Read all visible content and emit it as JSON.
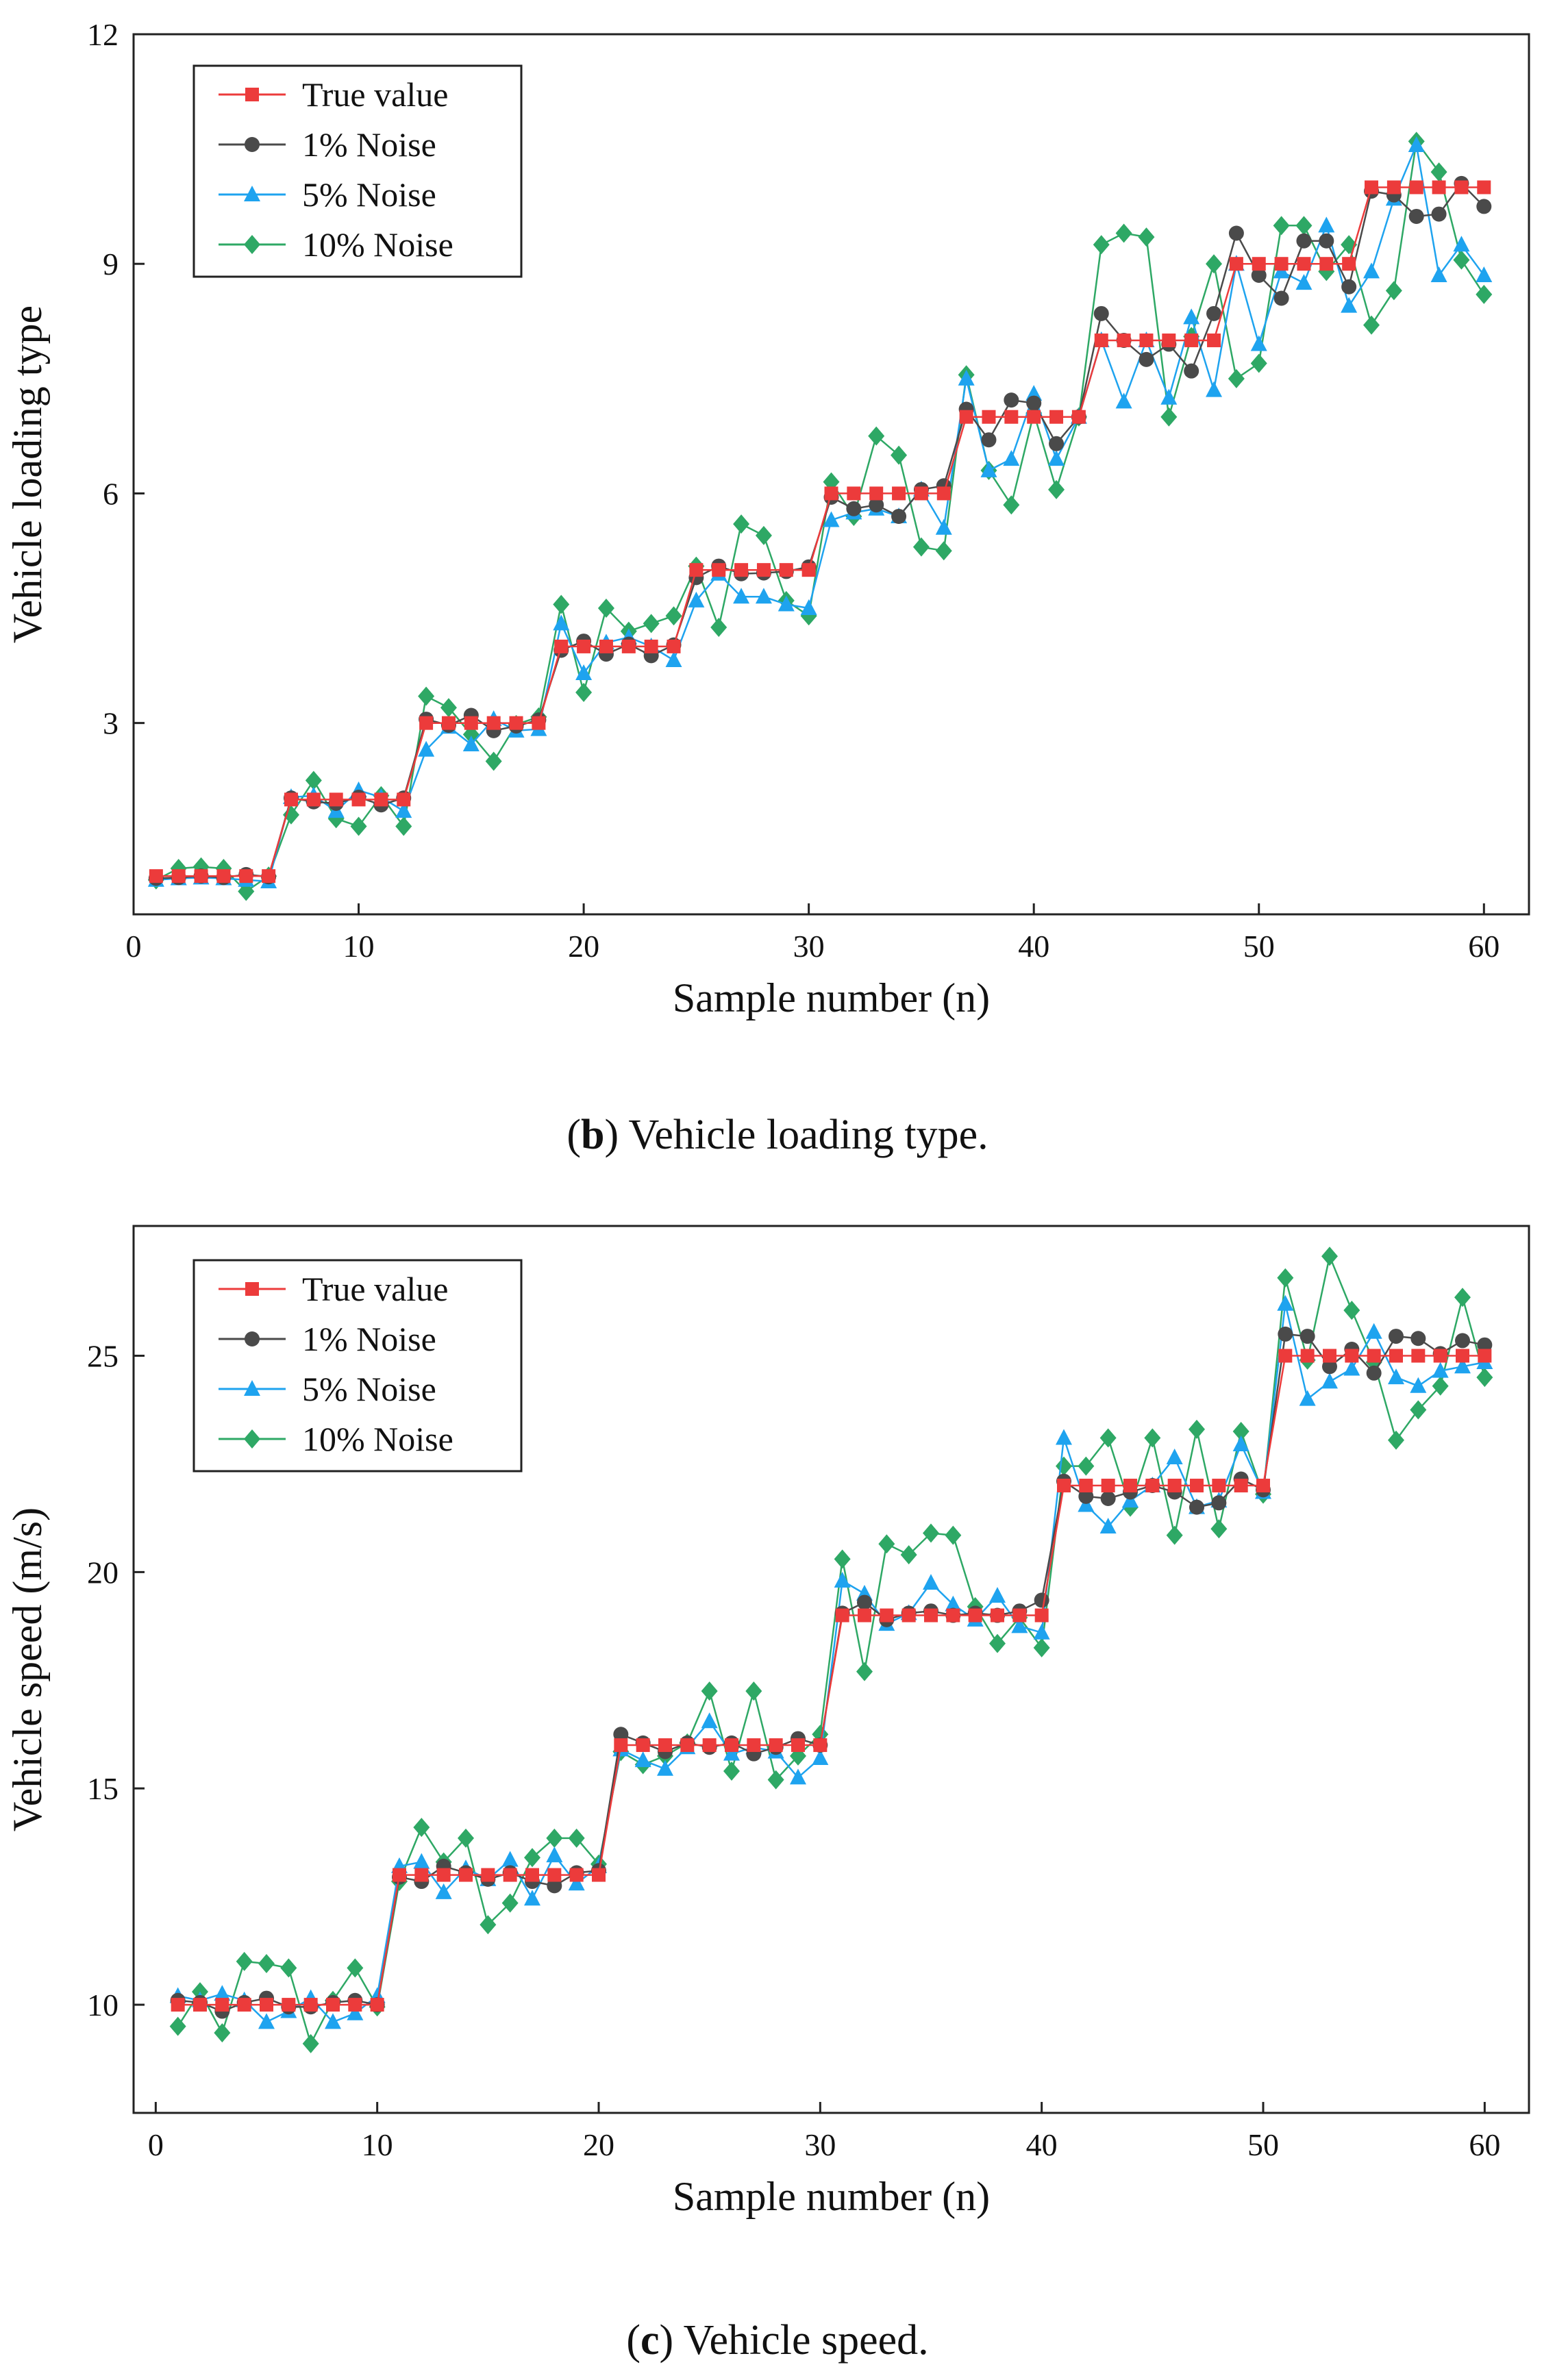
{
  "chart_data": [
    {
      "type": "line",
      "id": "b",
      "caption_letter": "b",
      "caption_text": "Vehicle loading type.",
      "xlabel": "Sample number (n)",
      "ylabel": "Vehicle loading type",
      "xlim": [
        0,
        62
      ],
      "ylim": [
        0.5,
        12
      ],
      "xticks": [
        0,
        10,
        20,
        30,
        40,
        50,
        60
      ],
      "yticks": [
        3,
        6,
        9,
        12
      ],
      "legend_position": "top-left",
      "x": [
        1,
        2,
        3,
        4,
        5,
        6,
        7,
        8,
        9,
        10,
        11,
        12,
        13,
        14,
        15,
        16,
        17,
        18,
        19,
        20,
        21,
        22,
        23,
        24,
        25,
        26,
        27,
        28,
        29,
        30,
        31,
        32,
        33,
        34,
        35,
        36,
        37,
        38,
        39,
        40,
        41,
        42,
        43,
        44,
        45,
        46,
        47,
        48,
        49,
        50,
        51,
        52,
        53,
        54,
        55,
        56,
        57,
        58,
        59,
        60
      ],
      "series": [
        {
          "name": "True value",
          "color": "#ec3b3b",
          "marker": "square",
          "values": [
            1,
            1,
            1,
            1,
            1,
            1,
            2,
            2,
            2,
            2,
            2,
            2,
            3,
            3,
            3,
            3,
            3,
            3,
            4,
            4,
            4,
            4,
            4,
            4,
            5,
            5,
            5,
            5,
            5,
            5,
            6,
            6,
            6,
            6,
            6,
            6,
            7,
            7,
            7,
            7,
            7,
            7,
            8,
            8,
            8,
            8,
            8,
            8,
            9,
            9,
            9,
            9,
            9,
            9,
            10,
            10,
            10,
            10,
            10,
            10
          ]
        },
        {
          "name": "1% Noise",
          "color": "#4a4a4a",
          "marker": "circle",
          "values": [
            0.97,
            0.98,
            1.0,
            0.98,
            1.02,
            0.99,
            2.02,
            1.97,
            1.95,
            2.03,
            1.93,
            2.02,
            3.05,
            2.97,
            3.1,
            2.9,
            2.96,
            3.04,
            3.95,
            4.07,
            3.9,
            4.03,
            3.88,
            4.02,
            4.9,
            5.05,
            4.95,
            4.96,
            4.98,
            5.04,
            5.95,
            5.8,
            5.85,
            5.7,
            6.05,
            6.1,
            7.1,
            6.7,
            7.22,
            7.18,
            6.65,
            7.0,
            8.35,
            8.0,
            7.75,
            7.95,
            7.6,
            8.35,
            9.4,
            8.85,
            8.55,
            9.3,
            9.3,
            8.7,
            9.95,
            9.9,
            9.62,
            9.65,
            10.05,
            9.75
          ]
        },
        {
          "name": "5% Noise",
          "color": "#1ea3ef",
          "marker": "triangle",
          "values": [
            0.95,
            0.97,
            0.98,
            0.97,
            0.95,
            0.93,
            2.03,
            2.05,
            1.85,
            2.12,
            2.03,
            1.85,
            2.65,
            2.95,
            2.72,
            3.05,
            2.9,
            2.92,
            4.3,
            3.65,
            4.05,
            4.12,
            4.0,
            3.82,
            4.6,
            4.95,
            4.65,
            4.65,
            4.55,
            4.5,
            5.65,
            5.75,
            5.8,
            5.7,
            6.05,
            5.55,
            7.5,
            6.3,
            6.45,
            7.3,
            6.45,
            7.0,
            8.0,
            7.2,
            8.0,
            7.25,
            8.3,
            7.35,
            9.0,
            7.95,
            8.9,
            8.75,
            9.5,
            8.45,
            8.9,
            9.85,
            10.55,
            8.85,
            9.25,
            8.85
          ]
        },
        {
          "name": "10% Noise",
          "color": "#2ea865",
          "marker": "diamond",
          "values": [
            0.95,
            1.1,
            1.12,
            1.1,
            0.8,
            1.0,
            1.8,
            2.25,
            1.75,
            1.65,
            2.05,
            1.65,
            3.35,
            3.2,
            2.85,
            2.5,
            2.98,
            3.08,
            4.55,
            3.4,
            4.5,
            4.2,
            4.3,
            4.4,
            5.05,
            4.25,
            5.6,
            5.45,
            4.6,
            4.4,
            6.15,
            5.7,
            6.75,
            6.5,
            5.3,
            5.25,
            7.55,
            6.3,
            5.85,
            7.05,
            6.05,
            7.0,
            9.25,
            9.4,
            9.35,
            7.0,
            8.05,
            9.0,
            7.5,
            7.7,
            9.5,
            9.5,
            8.9,
            9.25,
            8.2,
            8.65,
            10.6,
            10.2,
            9.05,
            8.6
          ]
        }
      ]
    },
    {
      "type": "line",
      "id": "c",
      "caption_letter": "c",
      "caption_text": "Vehicle speed.",
      "xlabel": "Sample number (n)",
      "ylabel": "Vehicle speed (m/s)",
      "xlim": [
        -1,
        62
      ],
      "ylim": [
        7.5,
        28
      ],
      "xticks": [
        0,
        10,
        20,
        30,
        40,
        50,
        60
      ],
      "yticks": [
        10,
        15,
        20,
        25
      ],
      "legend_position": "top-left",
      "x": [
        1,
        2,
        3,
        4,
        5,
        6,
        7,
        8,
        9,
        10,
        11,
        12,
        13,
        14,
        15,
        16,
        17,
        18,
        19,
        20,
        21,
        22,
        23,
        24,
        25,
        26,
        27,
        28,
        29,
        30,
        31,
        32,
        33,
        34,
        35,
        36,
        37,
        38,
        39,
        40,
        41,
        42,
        43,
        44,
        45,
        46,
        47,
        48,
        49,
        50,
        51,
        52,
        53,
        54,
        55,
        56,
        57,
        58,
        59,
        60
      ],
      "series": [
        {
          "name": "True value",
          "color": "#ec3b3b",
          "marker": "square",
          "values": [
            10,
            10,
            10,
            10,
            10,
            10,
            10,
            10,
            10,
            10,
            13,
            13,
            13,
            13,
            13,
            13,
            13,
            13,
            13,
            13,
            16,
            16,
            16,
            16,
            16,
            16,
            16,
            16,
            16,
            16,
            19,
            19,
            19,
            19,
            19,
            19,
            19,
            19,
            19,
            19,
            22,
            22,
            22,
            22,
            22,
            22,
            22,
            22,
            22,
            22,
            25,
            25,
            25,
            25,
            25,
            25,
            25,
            25,
            25,
            25
          ]
        },
        {
          "name": "1% Noise",
          "color": "#4a4a4a",
          "marker": "circle",
          "values": [
            10.1,
            10.05,
            9.85,
            10.05,
            10.15,
            9.95,
            9.95,
            10.05,
            10.1,
            10.0,
            12.95,
            12.85,
            13.2,
            13.05,
            12.9,
            13.05,
            12.85,
            12.75,
            13.05,
            13.1,
            16.25,
            16.05,
            15.85,
            16.05,
            15.95,
            16.05,
            15.8,
            15.95,
            16.15,
            16.0,
            19.05,
            19.3,
            18.9,
            19.05,
            19.1,
            19.0,
            19.05,
            19.0,
            19.1,
            19.35,
            22.1,
            21.75,
            21.7,
            21.85,
            22.0,
            21.85,
            21.5,
            21.6,
            22.15,
            21.9,
            25.5,
            25.45,
            24.75,
            25.15,
            24.6,
            25.45,
            25.4,
            25.05,
            25.35,
            25.25
          ]
        },
        {
          "name": "5% Noise",
          "color": "#1ea3ef",
          "marker": "triangle",
          "values": [
            10.2,
            10.1,
            10.25,
            10.1,
            9.6,
            9.85,
            10.15,
            9.6,
            9.8,
            10.2,
            13.2,
            13.3,
            12.6,
            13.15,
            12.9,
            13.35,
            12.45,
            13.45,
            12.8,
            13.2,
            15.9,
            15.65,
            15.45,
            15.95,
            16.55,
            15.8,
            15.95,
            15.85,
            15.25,
            15.7,
            19.8,
            19.5,
            18.8,
            19.05,
            19.75,
            19.25,
            18.9,
            19.45,
            18.75,
            18.6,
            23.1,
            21.55,
            21.05,
            21.65,
            22.0,
            22.65,
            21.5,
            21.65,
            22.95,
            21.85,
            26.2,
            24.0,
            24.4,
            24.7,
            25.55,
            24.5,
            24.3,
            24.65,
            24.75,
            24.85
          ]
        },
        {
          "name": "10% Noise",
          "color": "#2ea865",
          "marker": "diamond",
          "values": [
            9.5,
            10.3,
            9.35,
            11.0,
            10.95,
            10.85,
            9.1,
            10.1,
            10.85,
            9.95,
            12.85,
            14.1,
            13.3,
            13.85,
            11.85,
            12.35,
            13.4,
            13.85,
            13.85,
            13.25,
            15.85,
            15.55,
            15.75,
            16.05,
            17.25,
            15.4,
            17.25,
            15.2,
            15.75,
            16.25,
            20.3,
            17.7,
            20.65,
            20.4,
            20.9,
            20.85,
            19.2,
            18.35,
            18.95,
            18.25,
            22.45,
            22.45,
            23.1,
            21.5,
            23.1,
            20.85,
            23.3,
            21.0,
            23.25,
            21.8,
            26.8,
            24.9,
            27.3,
            26.05,
            24.85,
            23.05,
            23.75,
            24.3,
            26.35,
            24.5
          ]
        }
      ]
    }
  ]
}
